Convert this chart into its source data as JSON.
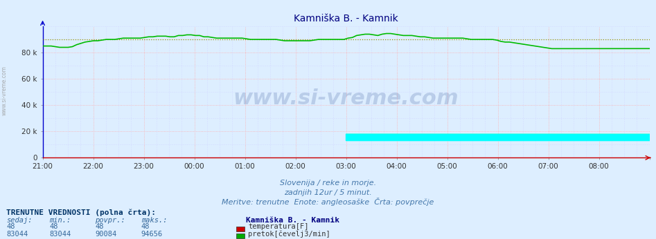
{
  "title": "Kamniška B. - Kamnik",
  "title_color": "#000080",
  "bg_color": "#ddeeff",
  "plot_bg_color": "#ddeeff",
  "grid_color_major": "#ffaaaa",
  "grid_color_minor": "#ccccff",
  "xlim": [
    0,
    144
  ],
  "ylim": [
    0,
    100000
  ],
  "yticks": [
    0,
    20000,
    40000,
    60000,
    80000
  ],
  "ytick_labels": [
    "0",
    "20 k",
    "40 k",
    "60 k",
    "80 k"
  ],
  "xtick_positions": [
    0,
    12,
    24,
    36,
    48,
    60,
    72,
    84,
    96,
    108,
    120,
    132,
    144
  ],
  "xtick_labels": [
    "21:00",
    "22:00",
    "23:00",
    "00:00",
    "01:00",
    "02:00",
    "03:00",
    "04:00",
    "05:00",
    "06:00",
    "07:00",
    "08:00",
    ""
  ],
  "temp_color": "#cc0000",
  "flow_color": "#00bb00",
  "avg_line_color": "#999900",
  "watermark_text": "www.si-vreme.com",
  "watermark_color": "#1a3a8a",
  "watermark_alpha": 0.18,
  "subtitle_lines": [
    "Slovenija / reke in morje.",
    "zadnjih 12ur / 5 minut.",
    "Meritve: trenutne  Enote: angleosaške  Črta: povprečje"
  ],
  "subtitle_color": "#4477aa",
  "table_header": "TRENUTNE VREDNOSTI (polna črta):",
  "table_cols": [
    "sedaj:",
    "min.:",
    "povpr.:",
    "maks.:"
  ],
  "table_station": "Kamniška B. - Kamnik",
  "table_data": [
    {
      "sedaj": "48",
      "min": "48",
      "povpr": "48",
      "maks": "48",
      "label": "temperatura[F]",
      "color": "#cc0000"
    },
    {
      "sedaj": "83044",
      "min": "83044",
      "povpr": "90084",
      "maks": "94656",
      "label": "pretok[čevelj3/min]",
      "color": "#00aa00"
    }
  ],
  "avg_flow": 90084,
  "flow_data": [
    85000,
    85000,
    85000,
    84500,
    84000,
    84000,
    84000,
    84500,
    86000,
    87000,
    88000,
    88500,
    89000,
    89000,
    89500,
    90000,
    90000,
    90000,
    90500,
    91000,
    91000,
    91000,
    91000,
    91000,
    91500,
    92000,
    92000,
    92500,
    92500,
    92500,
    92000,
    92000,
    93000,
    93000,
    93500,
    93500,
    93000,
    93000,
    92000,
    92000,
    91500,
    91000,
    91000,
    91000,
    91000,
    91000,
    91000,
    91000,
    90500,
    90000,
    90000,
    90000,
    90000,
    90000,
    90000,
    90000,
    89500,
    89000,
    89000,
    89000,
    89000,
    89000,
    89000,
    89000,
    89500,
    90000,
    90000,
    90000,
    90000,
    90000,
    90000,
    90000,
    91000,
    91500,
    93000,
    93500,
    94000,
    94000,
    93500,
    93000,
    94000,
    94500,
    94500,
    94000,
    93500,
    93000,
    93000,
    93000,
    92500,
    92000,
    92000,
    91500,
    91000,
    91000,
    91000,
    91000,
    91000,
    91000,
    91000,
    91000,
    90500,
    90000,
    90000,
    90000,
    90000,
    90000,
    90000,
    89500,
    88500,
    88000,
    88000,
    87500,
    87000,
    86500,
    86000,
    85500,
    85000,
    84500,
    84000,
    83500,
    83000,
    83000,
    83000,
    83000,
    83000,
    83000,
    83000,
    83000,
    83044,
    83044,
    83044,
    83044,
    83044,
    83044,
    83044,
    83044,
    83044,
    83044,
    83044,
    83044,
    83044,
    83044,
    83044,
    83044
  ]
}
